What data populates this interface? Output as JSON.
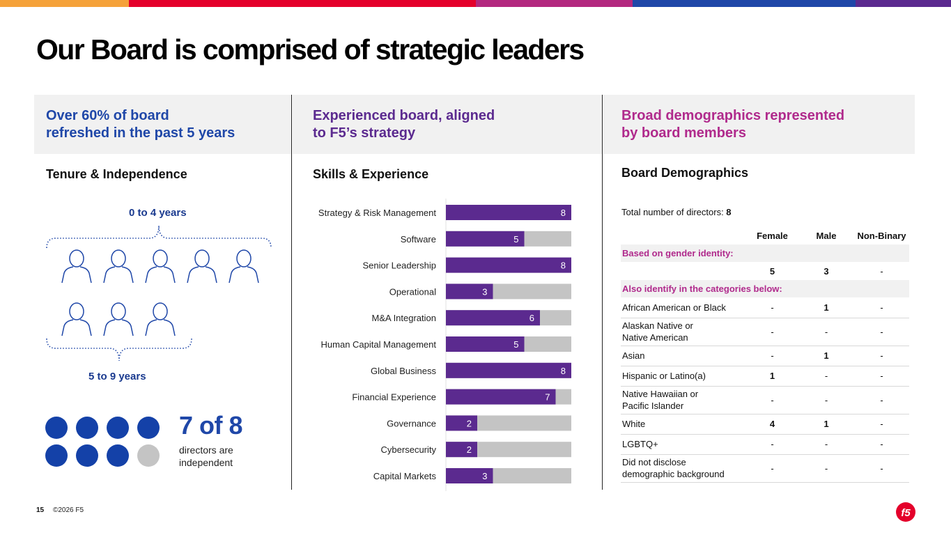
{
  "colors": {
    "blue": "#1f47a8",
    "purple": "#5b2a8f",
    "magenta": "#b02a8c",
    "grey": "#c4c4c4",
    "red": "#e4002b"
  },
  "topbar": [
    "#f5a23a",
    "#e4002b",
    "#b3287f",
    "#1f47a8",
    "#5b2a8f"
  ],
  "title": "Our Board is comprised of strategic leaders",
  "columns": [
    {
      "line1": "Over 60% of board",
      "line2": "refreshed in the past 5 years"
    },
    {
      "line1": "Experienced board, aligned",
      "line2": "to F5’s strategy"
    },
    {
      "line1": "Broad demographics represented",
      "line2": "by board members"
    }
  ],
  "tenure": {
    "heading": "Tenure & Independence",
    "group1_label": "0 to 4 years",
    "group1_count": 5,
    "group2_label": "5 to 9 years",
    "group2_count": 3,
    "independent_count": 7,
    "total": 8,
    "big_text": "7 of 8",
    "caption": "directors are independent"
  },
  "skills": {
    "heading": "Skills & Experience"
  },
  "chart_data": {
    "type": "bar",
    "orientation": "horizontal",
    "title": "Skills & Experience",
    "categories": [
      "Strategy & Risk Management",
      "Software",
      "Senior Leadership",
      "Operational",
      "M&A Integration",
      "Human Capital Management",
      "Global Business",
      "Financial Experience",
      "Governance",
      "Cybersecurity",
      "Capital Markets"
    ],
    "values": [
      8,
      5,
      8,
      3,
      6,
      5,
      8,
      7,
      2,
      2,
      3
    ],
    "max": 8,
    "xlim": [
      0,
      8
    ]
  },
  "demographics": {
    "heading": "Board Demographics",
    "total_label": "Total number of directors: ",
    "total_value": "8",
    "headers": [
      "Female",
      "Male",
      "Non-Binary"
    ],
    "section1": "Based on gender identity:",
    "gender_values": [
      "5",
      "3",
      "-"
    ],
    "section2": "Also identify in the categories below:",
    "rows": [
      {
        "l1": "African American or Black",
        "l2": "",
        "f": "-",
        "m": "1",
        "n": "-"
      },
      {
        "l1": "Alaskan Native or",
        "l2": "Native American",
        "f": "-",
        "m": "-",
        "n": "-"
      },
      {
        "l1": "Asian",
        "l2": "",
        "f": "-",
        "m": "1",
        "n": "-"
      },
      {
        "l1": "Hispanic or Latino(a)",
        "l2": "",
        "f": "1",
        "m": "-",
        "n": "-"
      },
      {
        "l1": "Native Hawaiian or",
        "l2": "Pacific Islander",
        "f": "-",
        "m": "-",
        "n": "-"
      },
      {
        "l1": "White",
        "l2": "",
        "f": "4",
        "m": "1",
        "n": "-"
      },
      {
        "l1": "LGBTQ+",
        "l2": "",
        "f": "-",
        "m": "-",
        "n": "-"
      },
      {
        "l1": "Did not disclose",
        "l2": "demographic background",
        "f": "-",
        "m": "-",
        "n": "-"
      }
    ]
  },
  "footer": {
    "page": "15",
    "copyright": "©2026 F5",
    "logo_text": "f5"
  }
}
